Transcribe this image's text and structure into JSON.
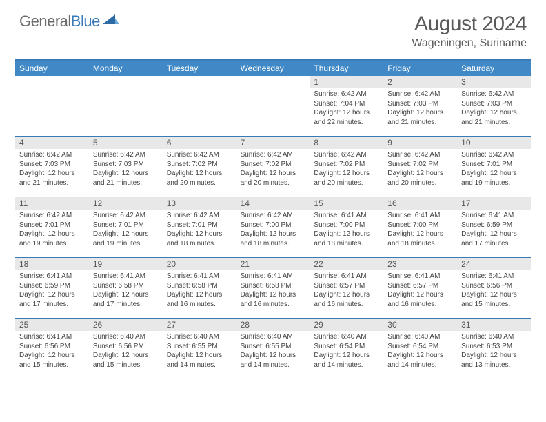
{
  "logo": {
    "text1": "General",
    "text2": "Blue"
  },
  "title": "August 2024",
  "location": "Wageningen, Suriname",
  "header_bg": "#4089c6",
  "border_color": "#3a7ab8",
  "daynum_bg": "#e8e8e8",
  "weekdays": [
    "Sunday",
    "Monday",
    "Tuesday",
    "Wednesday",
    "Thursday",
    "Friday",
    "Saturday"
  ],
  "cells": [
    {
      "day": "",
      "sunrise": "",
      "sunset": "",
      "daylight": ""
    },
    {
      "day": "",
      "sunrise": "",
      "sunset": "",
      "daylight": ""
    },
    {
      "day": "",
      "sunrise": "",
      "sunset": "",
      "daylight": ""
    },
    {
      "day": "",
      "sunrise": "",
      "sunset": "",
      "daylight": ""
    },
    {
      "day": "1",
      "sunrise": "Sunrise: 6:42 AM",
      "sunset": "Sunset: 7:04 PM",
      "daylight": "Daylight: 12 hours and 22 minutes."
    },
    {
      "day": "2",
      "sunrise": "Sunrise: 6:42 AM",
      "sunset": "Sunset: 7:03 PM",
      "daylight": "Daylight: 12 hours and 21 minutes."
    },
    {
      "day": "3",
      "sunrise": "Sunrise: 6:42 AM",
      "sunset": "Sunset: 7:03 PM",
      "daylight": "Daylight: 12 hours and 21 minutes."
    },
    {
      "day": "4",
      "sunrise": "Sunrise: 6:42 AM",
      "sunset": "Sunset: 7:03 PM",
      "daylight": "Daylight: 12 hours and 21 minutes."
    },
    {
      "day": "5",
      "sunrise": "Sunrise: 6:42 AM",
      "sunset": "Sunset: 7:03 PM",
      "daylight": "Daylight: 12 hours and 21 minutes."
    },
    {
      "day": "6",
      "sunrise": "Sunrise: 6:42 AM",
      "sunset": "Sunset: 7:02 PM",
      "daylight": "Daylight: 12 hours and 20 minutes."
    },
    {
      "day": "7",
      "sunrise": "Sunrise: 6:42 AM",
      "sunset": "Sunset: 7:02 PM",
      "daylight": "Daylight: 12 hours and 20 minutes."
    },
    {
      "day": "8",
      "sunrise": "Sunrise: 6:42 AM",
      "sunset": "Sunset: 7:02 PM",
      "daylight": "Daylight: 12 hours and 20 minutes."
    },
    {
      "day": "9",
      "sunrise": "Sunrise: 6:42 AM",
      "sunset": "Sunset: 7:02 PM",
      "daylight": "Daylight: 12 hours and 20 minutes."
    },
    {
      "day": "10",
      "sunrise": "Sunrise: 6:42 AM",
      "sunset": "Sunset: 7:01 PM",
      "daylight": "Daylight: 12 hours and 19 minutes."
    },
    {
      "day": "11",
      "sunrise": "Sunrise: 6:42 AM",
      "sunset": "Sunset: 7:01 PM",
      "daylight": "Daylight: 12 hours and 19 minutes."
    },
    {
      "day": "12",
      "sunrise": "Sunrise: 6:42 AM",
      "sunset": "Sunset: 7:01 PM",
      "daylight": "Daylight: 12 hours and 19 minutes."
    },
    {
      "day": "13",
      "sunrise": "Sunrise: 6:42 AM",
      "sunset": "Sunset: 7:01 PM",
      "daylight": "Daylight: 12 hours and 18 minutes."
    },
    {
      "day": "14",
      "sunrise": "Sunrise: 6:42 AM",
      "sunset": "Sunset: 7:00 PM",
      "daylight": "Daylight: 12 hours and 18 minutes."
    },
    {
      "day": "15",
      "sunrise": "Sunrise: 6:41 AM",
      "sunset": "Sunset: 7:00 PM",
      "daylight": "Daylight: 12 hours and 18 minutes."
    },
    {
      "day": "16",
      "sunrise": "Sunrise: 6:41 AM",
      "sunset": "Sunset: 7:00 PM",
      "daylight": "Daylight: 12 hours and 18 minutes."
    },
    {
      "day": "17",
      "sunrise": "Sunrise: 6:41 AM",
      "sunset": "Sunset: 6:59 PM",
      "daylight": "Daylight: 12 hours and 17 minutes."
    },
    {
      "day": "18",
      "sunrise": "Sunrise: 6:41 AM",
      "sunset": "Sunset: 6:59 PM",
      "daylight": "Daylight: 12 hours and 17 minutes."
    },
    {
      "day": "19",
      "sunrise": "Sunrise: 6:41 AM",
      "sunset": "Sunset: 6:58 PM",
      "daylight": "Daylight: 12 hours and 17 minutes."
    },
    {
      "day": "20",
      "sunrise": "Sunrise: 6:41 AM",
      "sunset": "Sunset: 6:58 PM",
      "daylight": "Daylight: 12 hours and 16 minutes."
    },
    {
      "day": "21",
      "sunrise": "Sunrise: 6:41 AM",
      "sunset": "Sunset: 6:58 PM",
      "daylight": "Daylight: 12 hours and 16 minutes."
    },
    {
      "day": "22",
      "sunrise": "Sunrise: 6:41 AM",
      "sunset": "Sunset: 6:57 PM",
      "daylight": "Daylight: 12 hours and 16 minutes."
    },
    {
      "day": "23",
      "sunrise": "Sunrise: 6:41 AM",
      "sunset": "Sunset: 6:57 PM",
      "daylight": "Daylight: 12 hours and 16 minutes."
    },
    {
      "day": "24",
      "sunrise": "Sunrise: 6:41 AM",
      "sunset": "Sunset: 6:56 PM",
      "daylight": "Daylight: 12 hours and 15 minutes."
    },
    {
      "day": "25",
      "sunrise": "Sunrise: 6:41 AM",
      "sunset": "Sunset: 6:56 PM",
      "daylight": "Daylight: 12 hours and 15 minutes."
    },
    {
      "day": "26",
      "sunrise": "Sunrise: 6:40 AM",
      "sunset": "Sunset: 6:56 PM",
      "daylight": "Daylight: 12 hours and 15 minutes."
    },
    {
      "day": "27",
      "sunrise": "Sunrise: 6:40 AM",
      "sunset": "Sunset: 6:55 PM",
      "daylight": "Daylight: 12 hours and 14 minutes."
    },
    {
      "day": "28",
      "sunrise": "Sunrise: 6:40 AM",
      "sunset": "Sunset: 6:55 PM",
      "daylight": "Daylight: 12 hours and 14 minutes."
    },
    {
      "day": "29",
      "sunrise": "Sunrise: 6:40 AM",
      "sunset": "Sunset: 6:54 PM",
      "daylight": "Daylight: 12 hours and 14 minutes."
    },
    {
      "day": "30",
      "sunrise": "Sunrise: 6:40 AM",
      "sunset": "Sunset: 6:54 PM",
      "daylight": "Daylight: 12 hours and 14 minutes."
    },
    {
      "day": "31",
      "sunrise": "Sunrise: 6:40 AM",
      "sunset": "Sunset: 6:53 PM",
      "daylight": "Daylight: 12 hours and 13 minutes."
    }
  ]
}
